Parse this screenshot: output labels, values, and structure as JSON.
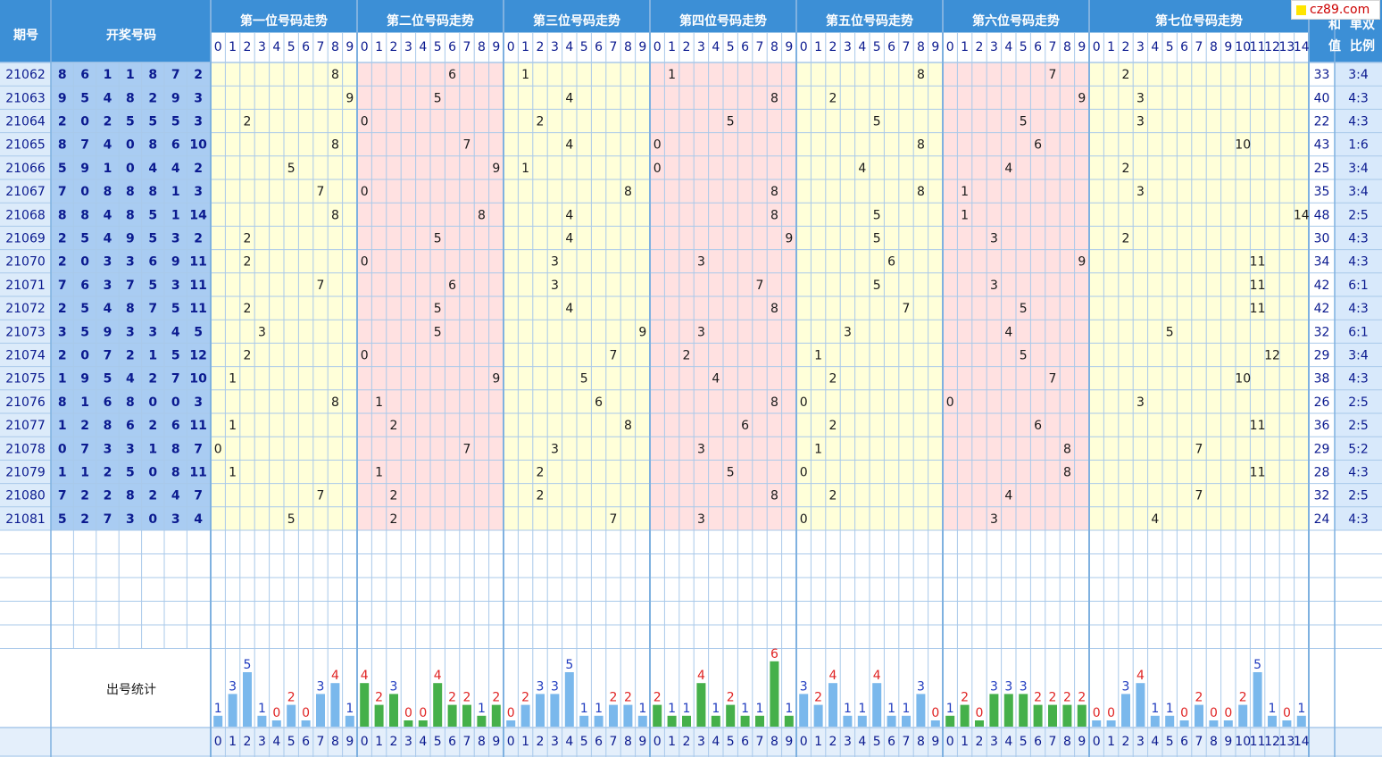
{
  "header": {
    "period_label": "期号",
    "draw_label": "开奖号码",
    "sum_label": [
      "和",
      "值"
    ],
    "ratio_label": [
      "单双",
      "比例"
    ],
    "stats_label": "出号统计"
  },
  "site_tag": "cz89.com",
  "colors": {
    "header_blue": "#3c8fd6",
    "number_cell": "#a9ccf2",
    "zone_yellow": "#ffffd9",
    "zone_pink": "#ffe1e1",
    "grid_line": "#a9c9ea",
    "bar_blue": "#7ab8ec",
    "bar_green": "#45b04a",
    "count_blue": "#1f3bbf",
    "count_red": "#e02424"
  },
  "chart_data": {
    "type": "table",
    "positions": [
      {
        "title": "第一位号码走势",
        "digits": [
          "0",
          "1",
          "2",
          "3",
          "4",
          "5",
          "6",
          "7",
          "8",
          "9"
        ],
        "zone": "yellow",
        "bar": "blue",
        "counts": [
          1,
          3,
          5,
          1,
          0,
          2,
          0,
          3,
          4,
          1
        ]
      },
      {
        "title": "第二位号码走势",
        "digits": [
          "0",
          "1",
          "2",
          "3",
          "4",
          "5",
          "6",
          "7",
          "8",
          "9"
        ],
        "zone": "pink",
        "bar": "green",
        "counts": [
          4,
          2,
          3,
          0,
          0,
          4,
          2,
          2,
          1,
          2
        ]
      },
      {
        "title": "第三位号码走势",
        "digits": [
          "0",
          "1",
          "2",
          "3",
          "4",
          "5",
          "6",
          "7",
          "8",
          "9"
        ],
        "zone": "yellow",
        "bar": "blue",
        "counts": [
          0,
          2,
          3,
          3,
          5,
          1,
          1,
          2,
          2,
          1
        ]
      },
      {
        "title": "第四位号码走势",
        "digits": [
          "0",
          "1",
          "2",
          "3",
          "4",
          "5",
          "6",
          "7",
          "8",
          "9"
        ],
        "zone": "pink",
        "bar": "green",
        "counts": [
          2,
          1,
          1,
          4,
          1,
          2,
          1,
          1,
          6,
          1
        ]
      },
      {
        "title": "第五位号码走势",
        "digits": [
          "0",
          "1",
          "2",
          "3",
          "4",
          "5",
          "6",
          "7",
          "8",
          "9"
        ],
        "zone": "yellow",
        "bar": "blue",
        "counts": [
          3,
          2,
          4,
          1,
          1,
          4,
          1,
          1,
          3,
          0
        ]
      },
      {
        "title": "第六位号码走势",
        "digits": [
          "0",
          "1",
          "2",
          "3",
          "4",
          "5",
          "6",
          "7",
          "8",
          "9"
        ],
        "zone": "pink",
        "bar": "green",
        "counts": [
          1,
          2,
          0,
          3,
          3,
          3,
          2,
          2,
          2,
          2
        ]
      },
      {
        "title": "第七位号码走势",
        "digits": [
          "0",
          "1",
          "2",
          "3",
          "4",
          "5",
          "6",
          "7",
          "8",
          "9",
          "10",
          "11",
          "12",
          "13",
          "14"
        ],
        "zone": "yellow",
        "bar": "blue",
        "counts": [
          0,
          0,
          3,
          4,
          1,
          1,
          0,
          2,
          0,
          0,
          2,
          5,
          1,
          0,
          1
        ]
      }
    ],
    "draws": [
      {
        "period": "21062",
        "nums": [
          8,
          6,
          1,
          1,
          8,
          7,
          2
        ],
        "sum": "33",
        "ratio": "3:4"
      },
      {
        "period": "21063",
        "nums": [
          9,
          5,
          4,
          8,
          2,
          9,
          3
        ],
        "sum": "40",
        "ratio": "4:3"
      },
      {
        "period": "21064",
        "nums": [
          2,
          0,
          2,
          5,
          5,
          5,
          3
        ],
        "sum": "22",
        "ratio": "4:3"
      },
      {
        "period": "21065",
        "nums": [
          8,
          7,
          4,
          0,
          8,
          6,
          10
        ],
        "sum": "43",
        "ratio": "1:6"
      },
      {
        "period": "21066",
        "nums": [
          5,
          9,
          1,
          0,
          4,
          4,
          2
        ],
        "sum": "25",
        "ratio": "3:4"
      },
      {
        "period": "21067",
        "nums": [
          7,
          0,
          8,
          8,
          8,
          1,
          3
        ],
        "sum": "35",
        "ratio": "3:4"
      },
      {
        "period": "21068",
        "nums": [
          8,
          8,
          4,
          8,
          5,
          1,
          14
        ],
        "sum": "48",
        "ratio": "2:5"
      },
      {
        "period": "21069",
        "nums": [
          2,
          5,
          4,
          9,
          5,
          3,
          2
        ],
        "sum": "30",
        "ratio": "4:3"
      },
      {
        "period": "21070",
        "nums": [
          2,
          0,
          3,
          3,
          6,
          9,
          11
        ],
        "sum": "34",
        "ratio": "4:3"
      },
      {
        "period": "21071",
        "nums": [
          7,
          6,
          3,
          7,
          5,
          3,
          11
        ],
        "sum": "42",
        "ratio": "6:1"
      },
      {
        "period": "21072",
        "nums": [
          2,
          5,
          4,
          8,
          7,
          5,
          11
        ],
        "sum": "42",
        "ratio": "4:3"
      },
      {
        "period": "21073",
        "nums": [
          3,
          5,
          9,
          3,
          3,
          4,
          5
        ],
        "sum": "32",
        "ratio": "6:1"
      },
      {
        "period": "21074",
        "nums": [
          2,
          0,
          7,
          2,
          1,
          5,
          12
        ],
        "sum": "29",
        "ratio": "3:4"
      },
      {
        "period": "21075",
        "nums": [
          1,
          9,
          5,
          4,
          2,
          7,
          10
        ],
        "sum": "38",
        "ratio": "4:3"
      },
      {
        "period": "21076",
        "nums": [
          8,
          1,
          6,
          8,
          0,
          0,
          3
        ],
        "sum": "26",
        "ratio": "2:5"
      },
      {
        "period": "21077",
        "nums": [
          1,
          2,
          8,
          6,
          2,
          6,
          11
        ],
        "sum": "36",
        "ratio": "2:5"
      },
      {
        "period": "21078",
        "nums": [
          0,
          7,
          3,
          3,
          1,
          8,
          7
        ],
        "sum": "29",
        "ratio": "5:2"
      },
      {
        "period": "21079",
        "nums": [
          1,
          1,
          2,
          5,
          0,
          8,
          11
        ],
        "sum": "28",
        "ratio": "4:3"
      },
      {
        "period": "21080",
        "nums": [
          7,
          2,
          2,
          8,
          2,
          4,
          7
        ],
        "sum": "32",
        "ratio": "2:5"
      },
      {
        "period": "21081",
        "nums": [
          5,
          2,
          7,
          3,
          0,
          3,
          4
        ],
        "sum": "24",
        "ratio": "4:3"
      }
    ]
  }
}
